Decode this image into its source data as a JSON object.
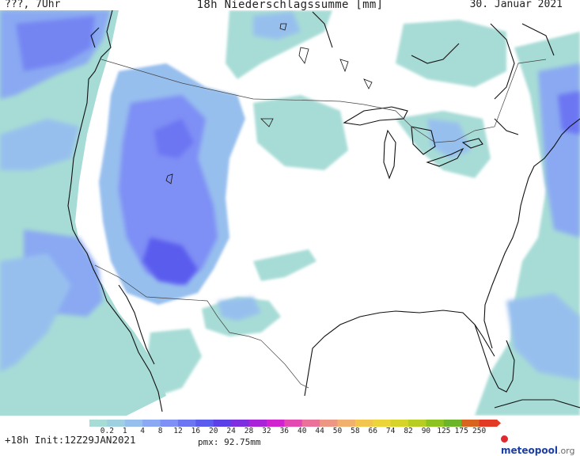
{
  "header": {
    "left": "???, 7Uhr",
    "title": "18h Niederschlagssumme [mm]",
    "date": "30. Januar 2021"
  },
  "legend": {
    "ticks": [
      "0.2",
      "1",
      "4",
      "8",
      "12",
      "16",
      "20",
      "24",
      "28",
      "32",
      "36",
      "40",
      "44",
      "50",
      "58",
      "66",
      "74",
      "82",
      "90",
      "125",
      "175",
      "250"
    ],
    "colors": [
      "#a7dcd6",
      "#9fd0e0",
      "#97bfee",
      "#8aa9f2",
      "#7e8ff5",
      "#6c76f2",
      "#5a5cee",
      "#5a40e6",
      "#7d2fe0",
      "#a923d9",
      "#d222cf",
      "#e449b2",
      "#e9719a",
      "#ee9684",
      "#f2b06e",
      "#f2c54f",
      "#ecd53a",
      "#d6d32a",
      "#b8cd24",
      "#8dc320",
      "#6cb52a",
      "#d9641f",
      "#e23a25"
    ]
  },
  "footer": {
    "init": "+18h Init:12Z29JAN2021",
    "pmx": "pmx: 92.75mm"
  },
  "logo": {
    "name": "meteopool",
    "tld": ".org",
    "icon": "meteopool-logo-icon"
  }
}
